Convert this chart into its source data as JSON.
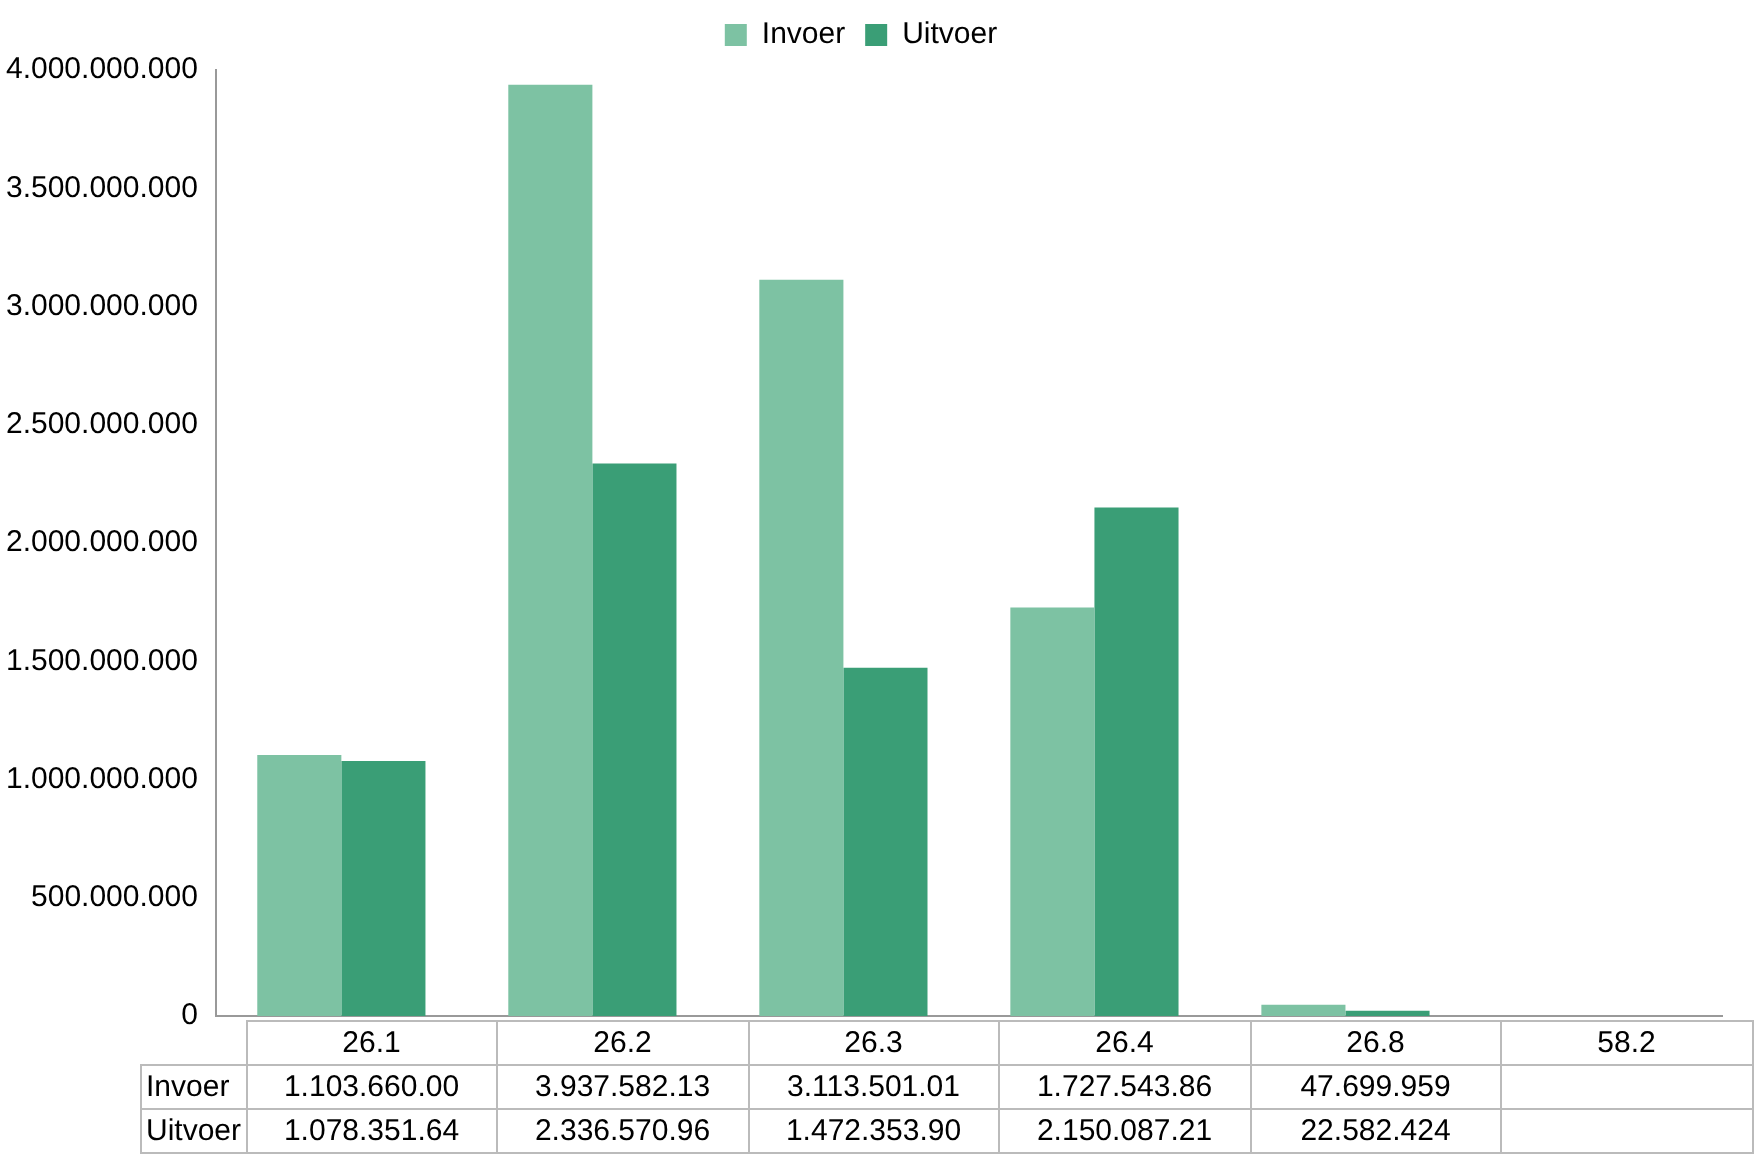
{
  "chart_data": {
    "type": "bar",
    "categories": [
      "26.1",
      "26.2",
      "26.3",
      "26.4",
      "26.8",
      "58.2"
    ],
    "series": [
      {
        "name": "Invoer",
        "color": "#7dc2a3",
        "values": [
          1103660000,
          3937582130,
          3113501010,
          1727543860,
          47699959,
          null
        ],
        "value_labels": [
          "1.103.660.00",
          "3.937.582.13",
          "3.113.501.01",
          "1.727.543.86",
          "47.699.959",
          null
        ]
      },
      {
        "name": "Uitvoer",
        "color": "#3a9e76",
        "values": [
          1078351640,
          2336570960,
          1472353900,
          2150087210,
          22582424,
          null
        ],
        "value_labels": [
          "1.078.351.64",
          "2.336.570.96",
          "1.472.353.90",
          "2.150.087.21",
          "22.582.424",
          null
        ]
      }
    ],
    "ylim": [
      0,
      4000000000
    ],
    "yticks": [
      {
        "value": 0,
        "label": "0"
      },
      {
        "value": 500000000,
        "label": "500.000.000"
      },
      {
        "value": 1000000000,
        "label": "1.000.000.000"
      },
      {
        "value": 1500000000,
        "label": "1.500.000.000"
      },
      {
        "value": 2000000000,
        "label": "2.000.000.000"
      },
      {
        "value": 2500000000,
        "label": "2.500.000.000"
      },
      {
        "value": 3000000000,
        "label": "3.000.000.000"
      },
      {
        "value": 3500000000,
        "label": "3.500.000.000"
      },
      {
        "value": 4000000000,
        "label": "4.000.000.000"
      }
    ],
    "grid": false,
    "legend": "top"
  }
}
